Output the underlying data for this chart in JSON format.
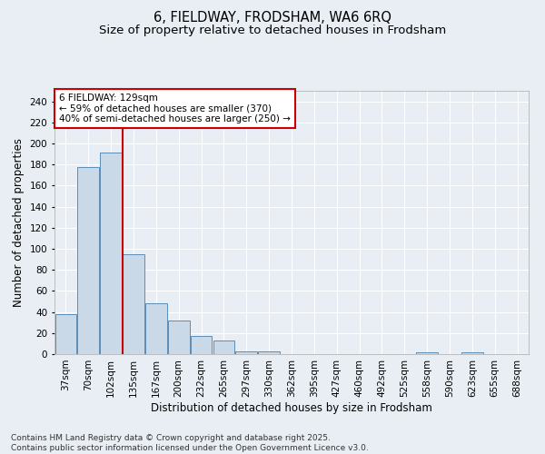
{
  "title_line1": "6, FIELDWAY, FRODSHAM, WA6 6RQ",
  "title_line2": "Size of property relative to detached houses in Frodsham",
  "xlabel": "Distribution of detached houses by size in Frodsham",
  "ylabel": "Number of detached properties",
  "categories": [
    "37sqm",
    "70sqm",
    "102sqm",
    "135sqm",
    "167sqm",
    "200sqm",
    "232sqm",
    "265sqm",
    "297sqm",
    "330sqm",
    "362sqm",
    "395sqm",
    "427sqm",
    "460sqm",
    "492sqm",
    "525sqm",
    "558sqm",
    "590sqm",
    "623sqm",
    "655sqm",
    "688sqm"
  ],
  "values": [
    38,
    178,
    191,
    95,
    48,
    32,
    17,
    13,
    3,
    3,
    0,
    0,
    0,
    0,
    0,
    0,
    2,
    0,
    2,
    0,
    0
  ],
  "bar_color": "#c9d9e8",
  "bar_edge_color": "#5b8db8",
  "vline_x_index": 2,
  "vline_color": "#cc0000",
  "annotation_text_line1": "6 FIELDWAY: 129sqm",
  "annotation_text_line2": "← 59% of detached houses are smaller (370)",
  "annotation_text_line3": "40% of semi-detached houses are larger (250) →",
  "annotation_box_color": "#ffffff",
  "annotation_box_edge_color": "#cc0000",
  "ylim": [
    0,
    250
  ],
  "yticks": [
    0,
    20,
    40,
    60,
    80,
    100,
    120,
    140,
    160,
    180,
    200,
    220,
    240
  ],
  "background_color": "#e8eef4",
  "plot_bg_color": "#e8eef4",
  "footer_text": "Contains HM Land Registry data © Crown copyright and database right 2025.\nContains public sector information licensed under the Open Government Licence v3.0.",
  "title_fontsize": 10.5,
  "subtitle_fontsize": 9.5,
  "axis_label_fontsize": 8.5,
  "tick_fontsize": 7.5,
  "annotation_fontsize": 7.5,
  "footer_fontsize": 6.5
}
